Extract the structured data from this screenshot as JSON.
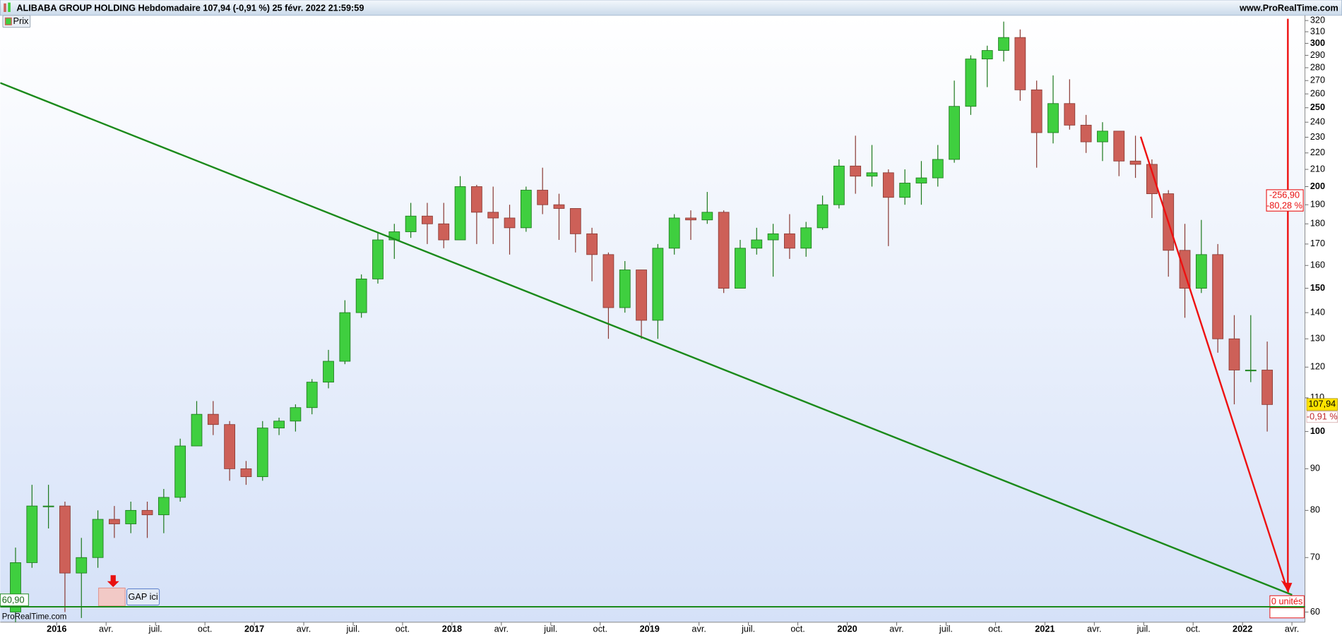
{
  "chart_data": {
    "type": "candlestick",
    "title": "ALIBABA GROUP HOLDING Hebdomadaire 107,94 (-0,91 %) 25 févr. 2022 21:59:59",
    "source": "www.ProRealTime.com",
    "watermark": "ProRealTime.com",
    "log_scale": true,
    "grid": false,
    "x": [
      "2015-10",
      "2015-11",
      "2015-12",
      "2016-01",
      "2016-02",
      "2016-03",
      "2016-04",
      "2016-05",
      "2016-06",
      "2016-07",
      "2016-08",
      "2016-09",
      "2016-10",
      "2016-11",
      "2016-12",
      "2017-01",
      "2017-02",
      "2017-03",
      "2017-04",
      "2017-05",
      "2017-06",
      "2017-07",
      "2017-08",
      "2017-09",
      "2017-10",
      "2017-11",
      "2017-12",
      "2018-01",
      "2018-02",
      "2018-03",
      "2018-04",
      "2018-05",
      "2018-06",
      "2018-07",
      "2018-08",
      "2018-09",
      "2018-10",
      "2018-11",
      "2018-12",
      "2019-01",
      "2019-02",
      "2019-03",
      "2019-04",
      "2019-05",
      "2019-06",
      "2019-07",
      "2019-08",
      "2019-09",
      "2019-10",
      "2019-11",
      "2019-12",
      "2020-01",
      "2020-02",
      "2020-03",
      "2020-04",
      "2020-05",
      "2020-06",
      "2020-07",
      "2020-08",
      "2020-09",
      "2020-10",
      "2020-11",
      "2020-12",
      "2021-01",
      "2021-02",
      "2021-03",
      "2021-04",
      "2021-05",
      "2021-06",
      "2021-07",
      "2021-08",
      "2021-09",
      "2021-10",
      "2021-11",
      "2021-12",
      "2022-01",
      "2022-02"
    ],
    "series": [
      {
        "name": "Prix",
        "up_color": "#3fcf3f",
        "down_color": "#cd6058",
        "open": [
          60,
          69,
          81,
          81,
          67,
          70,
          78,
          77,
          80,
          79,
          83,
          96,
          105,
          102,
          90,
          88,
          101,
          103,
          107,
          115,
          122,
          140,
          154,
          172,
          176,
          184,
          180,
          172,
          200,
          186,
          183,
          178,
          198,
          190,
          188,
          175,
          165,
          142,
          158,
          137,
          168,
          183,
          182,
          186,
          150,
          168,
          172,
          175,
          168,
          178,
          190,
          212,
          206,
          208,
          194,
          202,
          205,
          216,
          251,
          287,
          294,
          305,
          263,
          233,
          253,
          238,
          227,
          234,
          215,
          213,
          196,
          167,
          150,
          165,
          130,
          119,
          119
        ],
        "high": [
          72,
          86,
          86,
          82,
          74,
          80,
          81,
          82,
          82,
          85,
          98,
          109,
          109,
          103,
          92,
          103,
          104,
          108,
          116,
          126,
          145,
          156,
          176,
          180,
          191,
          191,
          191,
          206,
          201,
          200,
          190,
          200,
          211,
          196,
          188,
          178,
          166,
          162,
          158,
          170,
          185,
          187,
          197,
          187,
          172,
          178,
          180,
          185,
          181,
          195,
          216,
          231,
          225,
          210,
          210,
          215,
          225,
          270,
          290,
          298,
          319,
          312,
          270,
          274,
          271,
          245,
          240,
          234,
          231,
          216,
          198,
          180,
          182,
          170,
          139,
          139,
          129
        ],
        "low": [
          58,
          68,
          76,
          60,
          59,
          68,
          74,
          75,
          74,
          75,
          82,
          96,
          99,
          87,
          86,
          87,
          99,
          100,
          105,
          113,
          121,
          138,
          152,
          163,
          173,
          170,
          168,
          172,
          170,
          170,
          165,
          176,
          185,
          172,
          166,
          153,
          130,
          140,
          130,
          130,
          165,
          172,
          180,
          148,
          150,
          165,
          155,
          163,
          164,
          177,
          188,
          196,
          200,
          169,
          190,
          190,
          200,
          214,
          245,
          265,
          285,
          255,
          211,
          226,
          235,
          220,
          215,
          206,
          205,
          183,
          155,
          138,
          148,
          125,
          108,
          115,
          100
        ],
        "close": [
          69,
          81,
          81,
          67,
          70,
          78,
          77,
          80,
          79,
          83,
          96,
          105,
          102,
          90,
          88,
          101,
          103,
          107,
          115,
          122,
          140,
          154,
          172,
          176,
          184,
          180,
          172,
          200,
          186,
          183,
          178,
          198,
          190,
          188,
          175,
          165,
          142,
          158,
          137,
          168,
          183,
          182,
          186,
          150,
          168,
          172,
          175,
          168,
          178,
          190,
          212,
          206,
          208,
          194,
          202,
          205,
          216,
          251,
          287,
          294,
          305,
          263,
          233,
          253,
          238,
          227,
          234,
          215,
          213,
          196,
          167,
          150,
          165,
          130,
          119,
          119,
          107.94
        ]
      }
    ],
    "xlim": [
      "2015-09",
      "2022-05"
    ],
    "xticks": [
      {
        "value": "2016-01",
        "label": "2016"
      },
      {
        "value": "2016-04",
        "label": "avr."
      },
      {
        "value": "2016-07",
        "label": "juil."
      },
      {
        "value": "2016-10",
        "label": "oct."
      },
      {
        "value": "2017-01",
        "label": "2017"
      },
      {
        "value": "2017-04",
        "label": "avr."
      },
      {
        "value": "2017-07",
        "label": "juil."
      },
      {
        "value": "2017-10",
        "label": "oct."
      },
      {
        "value": "2018-01",
        "label": "2018"
      },
      {
        "value": "2018-04",
        "label": "avr."
      },
      {
        "value": "2018-07",
        "label": "juil."
      },
      {
        "value": "2018-10",
        "label": "oct."
      },
      {
        "value": "2019-01",
        "label": "2019"
      },
      {
        "value": "2019-04",
        "label": "avr."
      },
      {
        "value": "2019-07",
        "label": "juil."
      },
      {
        "value": "2019-10",
        "label": "oct."
      },
      {
        "value": "2020-01",
        "label": "2020"
      },
      {
        "value": "2020-04",
        "label": "avr."
      },
      {
        "value": "2020-07",
        "label": "juil."
      },
      {
        "value": "2020-10",
        "label": "oct."
      },
      {
        "value": "2021-01",
        "label": "2021"
      },
      {
        "value": "2021-04",
        "label": "avr."
      },
      {
        "value": "2021-07",
        "label": "juil."
      },
      {
        "value": "2021-10",
        "label": "oct."
      },
      {
        "value": "2022-01",
        "label": "2022"
      },
      {
        "value": "2022-04",
        "label": "avr."
      }
    ],
    "ylim": [
      58.3,
      324.7
    ],
    "yticks": [
      60,
      70,
      80,
      90,
      100,
      110,
      120,
      130,
      140,
      150,
      160,
      170,
      180,
      190,
      200,
      210,
      220,
      230,
      240,
      250,
      260,
      270,
      280,
      290,
      300,
      310,
      320
    ],
    "support": {
      "value": 60.9,
      "label": "60,90"
    },
    "last_price": {
      "value": 107.94,
      "label": "107,94"
    },
    "last_change": "-0,91 %",
    "gap_note": "GAP ici",
    "drop_points": "-256,90",
    "drop_percent": "-80,28 %",
    "units": "0 unités"
  }
}
